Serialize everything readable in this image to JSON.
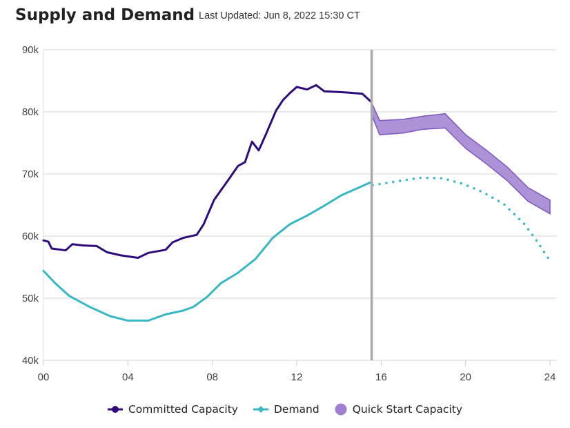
{
  "header": {
    "title": "Supply and Demand",
    "last_updated": "Last Updated: Jun 8, 2022 15:30 CT"
  },
  "chart_data": {
    "type": "line",
    "title": "Supply and Demand",
    "xlim": [
      0,
      24
    ],
    "ylim": [
      40000,
      90000
    ],
    "x_ticks": [
      0,
      4,
      8,
      12,
      16,
      20,
      24
    ],
    "x_tick_labels": [
      "00",
      "04",
      "08",
      "12",
      "16",
      "20",
      "24"
    ],
    "y_ticks": [
      40000,
      50000,
      60000,
      70000,
      80000,
      90000
    ],
    "y_tick_labels": [
      "40k",
      "50k",
      "60k",
      "70k",
      "80k",
      "90k"
    ],
    "grid": "horizontal",
    "current_time_marker": 15.55,
    "legend_position": "bottom",
    "series": [
      {
        "name": "Committed Capacity",
        "color": "#2e0a7a",
        "style": "solid",
        "x": [
          0,
          0.23,
          0.39,
          1.05,
          1.37,
          1.86,
          2.52,
          3.01,
          3.66,
          4.48,
          4.97,
          5.79,
          6.12,
          6.61,
          7.26,
          7.59,
          8.08,
          8.73,
          9.22,
          9.55,
          9.88,
          10.2,
          10.53,
          11.02,
          11.35,
          11.67,
          12.0,
          12.49,
          12.92,
          13.31,
          13.96,
          14.45,
          15.11,
          15.53
        ],
        "y": [
          59300,
          59100,
          58000,
          57700,
          58700,
          58500,
          58400,
          57400,
          56900,
          56500,
          57300,
          57800,
          59000,
          59700,
          60200,
          61900,
          65800,
          68900,
          71300,
          71900,
          75200,
          73800,
          76300,
          80200,
          81900,
          83000,
          84000,
          83600,
          84300,
          83300,
          83200,
          83100,
          82900,
          81600
        ]
      },
      {
        "name": "Demand",
        "color": "#36b8c4",
        "style": "solid",
        "x": [
          0,
          0.56,
          1.21,
          2.19,
          3.17,
          3.99,
          4.97,
          5.79,
          6.61,
          7.1,
          7.75,
          8.4,
          9.22,
          10.04,
          10.86,
          11.67,
          12.49,
          13.31,
          14.13,
          14.94,
          15.53
        ],
        "y": [
          54400,
          52400,
          50400,
          48600,
          47100,
          46400,
          46400,
          47400,
          48000,
          48600,
          50200,
          52400,
          54100,
          56300,
          59700,
          61900,
          63300,
          64900,
          66600,
          67800,
          68700
        ]
      },
      {
        "name": "Demand forecast",
        "color": "#36b8c4",
        "style": "dotted",
        "x": [
          15.6,
          16.9,
          17.9,
          18.9,
          19.9,
          20.8,
          21.8,
          22.8,
          23.4,
          24
        ],
        "y": [
          68200,
          68900,
          69400,
          69300,
          68400,
          67100,
          65200,
          61900,
          59100,
          56000
        ]
      },
      {
        "name": "Quick Start Capacity",
        "color": "#9f7fd1",
        "type": "band",
        "x": [
          15.53,
          15.93,
          17.07,
          18.0,
          19.03,
          20.01,
          21.0,
          21.98,
          22.96,
          24
        ],
        "upper": [
          81600,
          78600,
          78800,
          79300,
          79700,
          76300,
          73800,
          71100,
          67800,
          65800
        ],
        "lower": [
          79700,
          76300,
          76600,
          77200,
          77400,
          74100,
          71600,
          68900,
          65600,
          63600
        ]
      }
    ]
  },
  "legend": [
    {
      "label": "Committed Capacity",
      "color": "#2e0a7a",
      "marker": "circle-line"
    },
    {
      "label": "Demand",
      "color": "#36b8c4",
      "marker": "diamond-line"
    },
    {
      "label": "Quick Start Capacity",
      "color": "#9f7fd1",
      "marker": "circle"
    }
  ]
}
